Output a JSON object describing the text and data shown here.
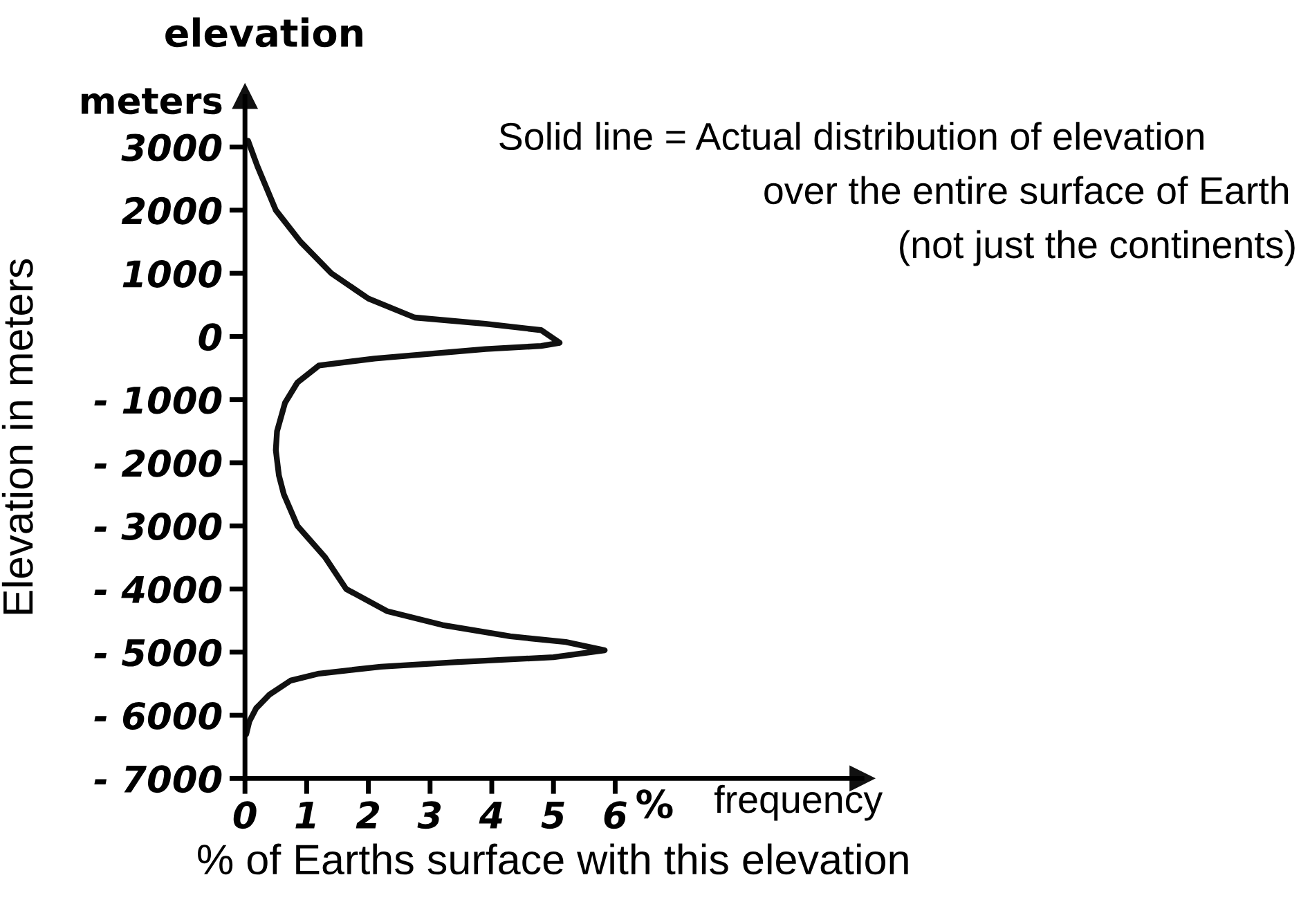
{
  "chart_data": {
    "type": "line",
    "xlabel": "% of Earths surface with this elevation",
    "ylabel": "Elevation in meters",
    "annotations": [
      "elevation",
      "meters",
      "%",
      "frequency",
      "Solid line = Actual distribution of elevation",
      "over the entire surface of Earth",
      "(not just the continents)"
    ],
    "series": [
      {
        "color": "#111111",
        "x": [
          0.05,
          0.2,
          0.5,
          0.9,
          1.4,
          2.0,
          2.75,
          3.9,
          4.8,
          5.1,
          4.8,
          3.9,
          2.1,
          1.2,
          0.85,
          0.65,
          0.52,
          0.5,
          0.55,
          0.63,
          0.85,
          1.3,
          1.64,
          2.3,
          3.2,
          4.3,
          5.2,
          5.83,
          5.0,
          3.4,
          2.2,
          1.2,
          0.74,
          0.4,
          0.18,
          0.07,
          0.02
        ],
        "values": [
          3100,
          2700,
          2000,
          1500,
          1000,
          600,
          300,
          200,
          100,
          -100,
          -150,
          -200,
          -350,
          -460,
          -730,
          -1050,
          -1500,
          -1800,
          -2200,
          -2500,
          -3000,
          -3500,
          -4000,
          -4350,
          -4570,
          -4750,
          -4840,
          -4970,
          -5080,
          -5160,
          -5230,
          -5340,
          -5450,
          -5670,
          -5890,
          -6100,
          -6300
        ]
      }
    ],
    "xlim": [
      0,
      10
    ],
    "ylim": [
      -7000,
      3800
    ],
    "xticks": [
      0,
      1,
      2,
      3,
      4,
      5,
      6
    ],
    "yticks": [
      3000,
      2000,
      1000,
      0,
      {
        "value": -1000,
        "label": "- 1000"
      },
      {
        "value": -2000,
        "label": "- 2000"
      },
      {
        "value": -3000,
        "label": "- 3000"
      },
      {
        "value": -4000,
        "label": "- 4000"
      },
      {
        "value": -5000,
        "label": "- 5000"
      },
      {
        "value": -6000,
        "label": "- 6000"
      },
      {
        "value": -7000,
        "label": "- 7000"
      }
    ],
    "grid": false,
    "legend": false,
    "marker": "none",
    "line_style": "solid"
  }
}
